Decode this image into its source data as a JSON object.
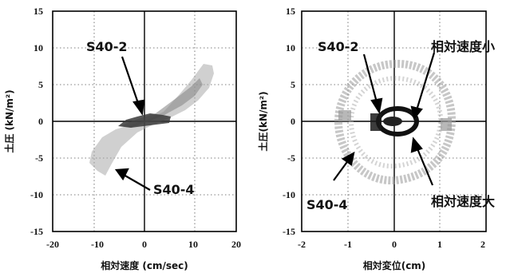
{
  "chart_data": [
    {
      "type": "scatter",
      "ylabel": "土圧 (kN/m²)",
      "xlabel": "相対速度 (cm/sec)",
      "xlim": [
        -20,
        20
      ],
      "ylim": [
        -15,
        15
      ],
      "x_ticks": [
        "-20",
        "-10",
        "0",
        "10",
        "20"
      ],
      "y_ticks": [
        "15",
        "10",
        "5",
        "0",
        "-5",
        "-10",
        "-15"
      ],
      "grid": true,
      "series": [
        {
          "name": "S40-2",
          "color": "#222222",
          "x": [
            -7,
            -6,
            -5,
            -4,
            -3,
            -2,
            -1,
            0,
            1,
            2,
            3,
            4
          ],
          "y": [
            -1.2,
            -0.9,
            -0.6,
            -0.2,
            0.1,
            0.3,
            0.5,
            0.5,
            0.4,
            0.3,
            0.2,
            0.1
          ]
        },
        {
          "name": "S40-4",
          "color": "#888888",
          "x": [
            -12,
            -10,
            -8,
            -6,
            -4,
            -2,
            0,
            2,
            4,
            6,
            8,
            10,
            12
          ],
          "y": [
            -3.5,
            -5,
            -6.5,
            -4,
            -2,
            -1,
            0,
            1.5,
            3.5,
            5,
            7,
            6,
            4
          ]
        }
      ],
      "annotations": [
        {
          "text": "S40-2",
          "x": -4,
          "y": 10.5
        },
        {
          "text": "S40-4",
          "x": -2,
          "y": -9.5
        }
      ]
    },
    {
      "type": "scatter",
      "ylabel": "土圧(kN/m²)",
      "xlabel": "相対変位(cm)",
      "xlim": [
        -2,
        2
      ],
      "ylim": [
        -15,
        15
      ],
      "x_ticks": [
        "-2",
        "-1",
        "0",
        "1",
        "2"
      ],
      "y_ticks": [
        "15",
        "10",
        "5",
        "0",
        "-5",
        "-10",
        "-15"
      ],
      "grid": true,
      "series": [
        {
          "name": "S40-2",
          "color": "#111111",
          "x": [
            -0.5,
            -0.3,
            0,
            0.3,
            0.5,
            0.3,
            0,
            -0.3,
            -0.5
          ],
          "y": [
            0,
            1.5,
            2,
            1.5,
            0,
            -1.5,
            -2,
            -1.5,
            0
          ]
        },
        {
          "name": "S40-4",
          "color": "#888888",
          "x": [
            -1.2,
            -0.8,
            0,
            0.8,
            1.2,
            0.8,
            0,
            -0.8,
            -1.2
          ],
          "y": [
            0,
            5,
            7,
            5,
            0,
            -5,
            -8,
            -5,
            0
          ]
        }
      ],
      "annotations": [
        {
          "text": "S40-2",
          "x": -0.7,
          "y": 10.5
        },
        {
          "text": "相対速度小",
          "x": 0.6,
          "y": 10.5
        },
        {
          "text": "S40-4",
          "x": -1.25,
          "y": -11.5
        },
        {
          "text": "相対速度大",
          "x": 0.65,
          "y": -11
        }
      ]
    }
  ]
}
